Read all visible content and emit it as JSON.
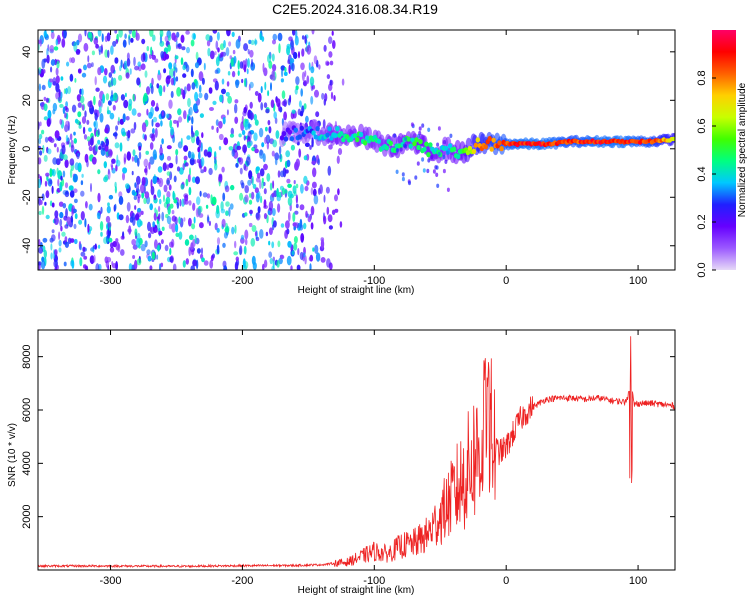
{
  "title": "C2E5.2024.316.08.34.R19",
  "chart_data": [
    {
      "type": "heatmap",
      "xlabel": "Height of straight line (km)",
      "ylabel": "Frequency (Hz)",
      "xlim": [
        -355,
        128
      ],
      "ylim": [
        -50,
        49
      ],
      "x_ticks": [
        -300,
        -200,
        -100,
        0,
        100
      ],
      "y_ticks": [
        -40,
        -20,
        0,
        20,
        40
      ],
      "colorbar": {
        "label": "Normalized spectral amplitude",
        "range": [
          0,
          1
        ],
        "ticks": [
          0.0,
          0.2,
          0.4,
          0.6,
          0.8
        ],
        "colormap": [
          "#e6d9f7",
          "#9b59ff",
          "#6600ff",
          "#2020ff",
          "#00c8ff",
          "#00ff80",
          "#40ff00",
          "#c8ff00",
          "#ffd000",
          "#ff6000",
          "#ff0000",
          "#ff0066"
        ]
      },
      "ridge": {
        "x": [
          -170,
          -150,
          -130,
          -110,
          -95,
          -85,
          -75,
          -65,
          -55,
          -45,
          -35,
          -25,
          -15,
          -5,
          10,
          30,
          50,
          70,
          90,
          110,
          128
        ],
        "freq": [
          6,
          7,
          6,
          5,
          2,
          1,
          3,
          1,
          -1,
          0,
          -2,
          1,
          2,
          2,
          2,
          2,
          3,
          3,
          3,
          3,
          4
        ],
        "amplitude": [
          0.2,
          0.3,
          0.4,
          0.45,
          0.4,
          0.5,
          0.45,
          0.5,
          0.45,
          0.4,
          0.5,
          0.7,
          0.8,
          0.85,
          0.9,
          0.9,
          0.85,
          0.9,
          0.9,
          0.85,
          0.7
        ]
      },
      "noise_region": {
        "x_range": [
          -355,
          -120
        ],
        "freq_range": [
          -50,
          49
        ],
        "amplitude": 0.1
      }
    },
    {
      "type": "line",
      "xlabel": "Height of straight line (km)",
      "ylabel": "SNR (10 * v/v)",
      "xlim": [
        -355,
        128
      ],
      "ylim": [
        0,
        9000
      ],
      "x_ticks": [
        -300,
        -200,
        -100,
        0,
        100
      ],
      "y_ticks": [
        2000,
        4000,
        6000,
        8000
      ],
      "series": [
        {
          "color": "#ee2222",
          "x": [
            -355,
            -300,
            -250,
            -200,
            -160,
            -140,
            -120,
            -110,
            -100,
            -90,
            -80,
            -70,
            -60,
            -50,
            -40,
            -30,
            -25,
            -20,
            -15,
            -12,
            -10,
            -5,
            0,
            5,
            10,
            15,
            20,
            25,
            30,
            40,
            50,
            60,
            70,
            80,
            90,
            93,
            95,
            97,
            100,
            110,
            120,
            128
          ],
          "y": [
            150,
            150,
            140,
            160,
            170,
            200,
            300,
            500,
            700,
            600,
            900,
            1000,
            1300,
            2000,
            2800,
            3600,
            4200,
            4500,
            5000,
            5200,
            4700,
            4400,
            4600,
            5100,
            5600,
            5900,
            6100,
            6250,
            6400,
            6450,
            6450,
            6400,
            6450,
            6350,
            6300,
            6600,
            7000,
            6200,
            6250,
            6250,
            6200,
            6150
          ]
        }
      ]
    }
  ]
}
